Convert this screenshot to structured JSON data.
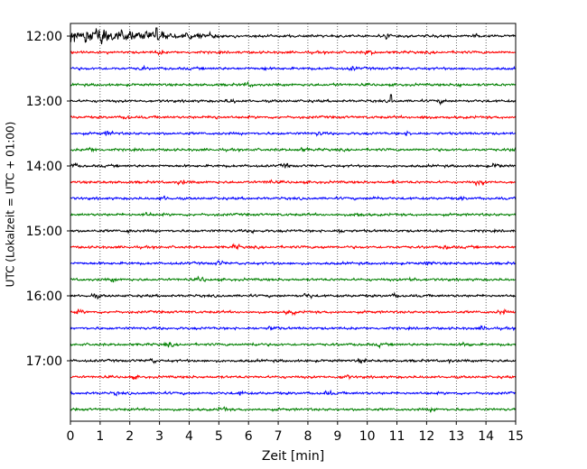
{
  "chart_data": {
    "type": "line",
    "title": "",
    "xlabel": "Zeit  [min]",
    "ylabel": "UTC (Lokalzeit = UTC + 01:00)",
    "xlim": [
      0,
      15
    ],
    "x_ticks": [
      0,
      1,
      2,
      3,
      4,
      5,
      6,
      7,
      8,
      9,
      10,
      11,
      12,
      13,
      14,
      15
    ],
    "x_tick_labels": [
      "0",
      "1",
      "2",
      "3",
      "4",
      "5",
      "6",
      "7",
      "8",
      "9",
      "10",
      "11",
      "12",
      "13",
      "14",
      "15"
    ],
    "y_tick_labels": [
      "12:00",
      "13:00",
      "14:00",
      "15:00",
      "16:00",
      "17:00"
    ],
    "trace_interval_minutes": 15,
    "grid": "vertical-dotted",
    "trace_colors": [
      "#000000",
      "#ff0000",
      "#0000ff",
      "#008000"
    ],
    "traces": [
      {
        "start": "12:00",
        "color": "#000000"
      },
      {
        "start": "12:15",
        "color": "#ff0000"
      },
      {
        "start": "12:30",
        "color": "#0000ff"
      },
      {
        "start": "12:45",
        "color": "#008000"
      },
      {
        "start": "13:00",
        "color": "#000000"
      },
      {
        "start": "13:15",
        "color": "#ff0000"
      },
      {
        "start": "13:30",
        "color": "#0000ff"
      },
      {
        "start": "13:45",
        "color": "#008000"
      },
      {
        "start": "14:00",
        "color": "#000000"
      },
      {
        "start": "14:15",
        "color": "#ff0000"
      },
      {
        "start": "14:30",
        "color": "#0000ff"
      },
      {
        "start": "14:45",
        "color": "#008000"
      },
      {
        "start": "15:00",
        "color": "#000000"
      },
      {
        "start": "15:15",
        "color": "#ff0000"
      },
      {
        "start": "15:30",
        "color": "#0000ff"
      },
      {
        "start": "15:45",
        "color": "#008000"
      },
      {
        "start": "16:00",
        "color": "#000000"
      },
      {
        "start": "16:15",
        "color": "#ff0000"
      },
      {
        "start": "16:30",
        "color": "#0000ff"
      },
      {
        "start": "16:45",
        "color": "#008000"
      },
      {
        "start": "17:00",
        "color": "#000000"
      },
      {
        "start": "17:15",
        "color": "#ff0000"
      },
      {
        "start": "17:30",
        "color": "#0000ff"
      },
      {
        "start": "17:45",
        "color": "#008000"
      }
    ]
  }
}
